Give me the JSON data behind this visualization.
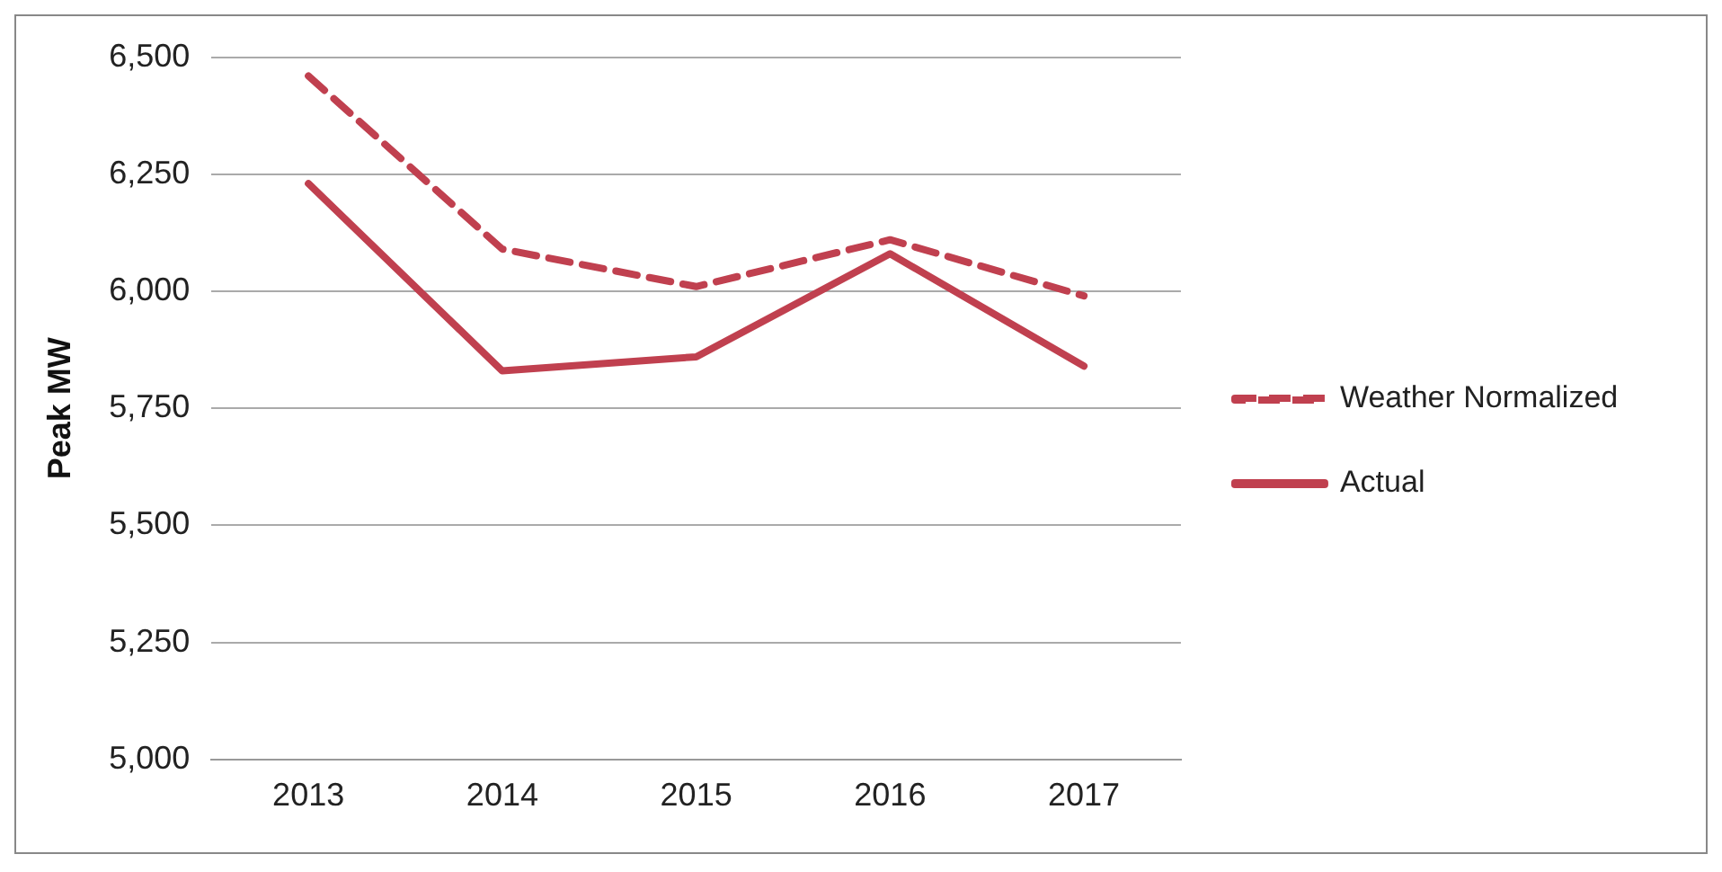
{
  "chart_data": {
    "type": "line",
    "ylabel": "Peak MW",
    "categories": [
      "2013",
      "2014",
      "2015",
      "2016",
      "2017"
    ],
    "series": [
      {
        "name": "Weather Normalized",
        "color": "#c0404f",
        "line_style": "dashed",
        "values": [
          6460,
          6090,
          6010,
          6110,
          5990
        ]
      },
      {
        "name": "Actual",
        "color": "#c0404f",
        "line_style": "solid",
        "values": [
          6230,
          5830,
          5860,
          6080,
          5840
        ]
      }
    ],
    "ylim": [
      5000,
      6500
    ],
    "yticks": [
      {
        "value": 5000,
        "label": "5,000"
      },
      {
        "value": 5250,
        "label": "5,250"
      },
      {
        "value": 5500,
        "label": "5,500"
      },
      {
        "value": 5750,
        "label": "5,750"
      },
      {
        "value": 6000,
        "label": "6,000"
      },
      {
        "value": 6250,
        "label": "6,250"
      },
      {
        "value": 6500,
        "label": "6,500"
      }
    ],
    "grid": "y",
    "legend": "right",
    "marker": "none"
  }
}
